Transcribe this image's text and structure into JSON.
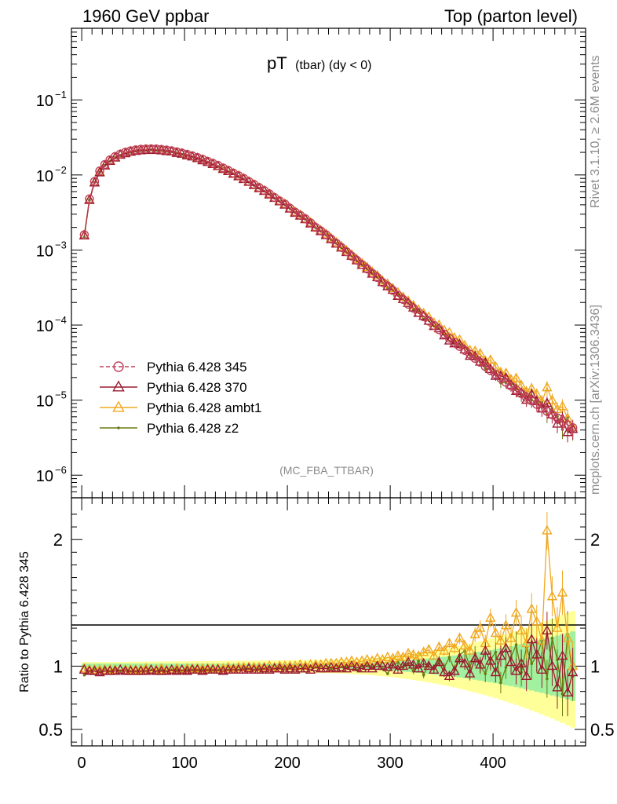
{
  "header": {
    "left": "1960 GeV ppbar",
    "right": "Top (parton level)"
  },
  "side_text": {
    "rivet": "Rivet 3.1.10, ≥ 2.6M events",
    "mcplots": "mcplots.cern.ch [arXiv:1306.3436]"
  },
  "plot_title": {
    "main": "pT",
    "sub": "(tbar) (dy < 0)"
  },
  "analysis_label": "(MC_FBA_TTBAR)",
  "ratio_ylabel": "Ratio to Pythia 6.428 345",
  "legend": [
    {
      "label": "Pythia 6.428 345",
      "color": "#c0405a",
      "marker": "circle",
      "dashed": true
    },
    {
      "label": "Pythia 6.428 370",
      "color": "#9b1b30",
      "marker": "triangle",
      "dashed": false
    },
    {
      "label": "Pythia 6.428 ambt1",
      "color": "#f0a820",
      "marker": "triangle",
      "dashed": false
    },
    {
      "label": "Pythia 6.428 z2",
      "color": "#6b7a12",
      "marker": "dot",
      "dashed": false
    }
  ],
  "chart_data": [
    {
      "type": "line",
      "panel": "main",
      "log_y": true,
      "x_range": [
        -10,
        490
      ],
      "ylim": [
        5e-07,
        0.9
      ],
      "ytick_labels": [
        "10^-6",
        "10^-5",
        "10^-4",
        "10^-3",
        "10^-2",
        "10^-1"
      ],
      "x": [
        2.5,
        7.5,
        12.5,
        17.5,
        22.5,
        27.5,
        32.5,
        37.5,
        42.5,
        47.5,
        52.5,
        57.5,
        62.5,
        67.5,
        72.5,
        77.5,
        82.5,
        87.5,
        92.5,
        97.5,
        102.5,
        107.5,
        112.5,
        117.5,
        122.5,
        127.5,
        132.5,
        137.5,
        142.5,
        147.5,
        152.5,
        157.5,
        162.5,
        167.5,
        172.5,
        177.5,
        182.5,
        187.5,
        192.5,
        197.5,
        202.5,
        207.5,
        212.5,
        217.5,
        222.5,
        227.5,
        232.5,
        237.5,
        242.5,
        247.5,
        252.5,
        257.5,
        262.5,
        267.5,
        272.5,
        277.5,
        282.5,
        287.5,
        292.5,
        297.5,
        302.5,
        307.5,
        312.5,
        317.5,
        322.5,
        327.5,
        332.5,
        337.5,
        342.5,
        347.5,
        352.5,
        357.5,
        362.5,
        367.5,
        372.5,
        377.5,
        382.5,
        387.5,
        392.5,
        397.5,
        402.5,
        407.5,
        412.5,
        417.5,
        422.5,
        427.5,
        432.5,
        437.5,
        442.5,
        447.5,
        452.5,
        457.5,
        462.5,
        467.5,
        472.5,
        477.5
      ],
      "series": [
        {
          "name": "Pythia 6.428 345",
          "values": [
            0.0016,
            0.0048,
            0.0082,
            0.0113,
            0.0138,
            0.0159,
            0.0176,
            0.019,
            0.0201,
            0.021,
            0.0216,
            0.022,
            0.0222,
            0.0223,
            0.0222,
            0.0219,
            0.0215,
            0.021,
            0.0203,
            0.0196,
            0.0188,
            0.018,
            0.0171,
            0.0162,
            0.0152,
            0.0143,
            0.0134,
            0.0124,
            0.0115,
            0.0106,
            0.0098,
            0.009,
            0.0082,
            0.0075,
            0.0068,
            0.0062,
            0.0056,
            0.005,
            0.0045,
            0.0041,
            0.0036,
            0.0032,
            0.0029,
            0.0026,
            0.0023,
            0.002,
            0.0018,
            0.0016,
            0.0014,
            0.00123,
            0.00108,
            0.00095,
            0.00083,
            0.00073,
            0.00064,
            0.00056,
            0.00049,
            0.00043,
            0.00037,
            0.00033,
            0.00029,
            0.00025,
            0.00022,
            0.00019,
            0.000168,
            0.000147,
            0.000129,
            0.000113,
            9.9e-05,
            8.7e-05,
            7.6e-05,
            6.7e-05,
            5.9e-05,
            5.2e-05,
            4.6e-05,
            4.1e-05,
            3.6e-05,
            3.2e-05,
            2.8e-05,
            2.48e-05,
            2.2e-05,
            1.95e-05,
            1.73e-05,
            1.54e-05,
            1.37e-05,
            1.22e-05,
            1.09e-05,
            9.8e-06,
            8.8e-06,
            7.9e-06,
            7.1e-06,
            6.4e-06,
            5.8e-06,
            5.2e-06,
            4.7e-06,
            4.3e-06
          ]
        },
        {
          "name": "Pythia 6.428 370",
          "ratio": [
            0.97,
            0.96,
            0.96,
            0.95,
            0.96,
            0.96,
            0.96,
            0.97,
            0.96,
            0.96,
            0.96,
            0.96,
            0.96,
            0.97,
            0.96,
            0.96,
            0.96,
            0.97,
            0.96,
            0.97,
            0.96,
            0.97,
            0.97,
            0.96,
            0.97,
            0.97,
            0.97,
            0.96,
            0.97,
            0.97,
            0.97,
            0.97,
            0.98,
            0.97,
            0.97,
            0.98,
            0.97,
            0.98,
            0.98,
            0.97,
            0.98,
            0.97,
            0.98,
            0.98,
            0.97,
            0.99,
            0.98,
            0.98,
            0.99,
            0.98,
            0.99,
            0.98,
            1.0,
            0.99,
            0.98,
            1.0,
            0.98,
            1.0,
            1.0,
            0.99,
            1.01,
            0.97,
            1.0,
            1.03,
            1.01,
            0.98,
            1.02,
            1.0,
            0.97,
            1.03,
            0.95,
            0.92,
            0.96,
            1.06,
            1.02,
            0.94,
            1.06,
            1.01,
            1.12,
            1.04,
            0.95,
            1.08,
            1.14,
            1.03,
            0.96,
            1.02,
            0.92,
            1.21,
            1.09,
            0.97,
            1.28,
            1.0,
            0.83,
            1.08,
            0.79,
            0.95
          ]
        },
        {
          "name": "Pythia 6.428 ambt1",
          "ratio": [
            0.98,
            0.97,
            0.97,
            0.97,
            0.97,
            0.97,
            0.97,
            0.97,
            0.97,
            0.97,
            0.97,
            0.97,
            0.98,
            0.97,
            0.97,
            0.98,
            0.97,
            0.97,
            0.98,
            0.97,
            0.98,
            0.98,
            0.98,
            0.98,
            0.98,
            0.98,
            0.98,
            0.98,
            0.99,
            0.98,
            0.99,
            0.99,
            0.99,
            0.99,
            0.99,
            0.99,
            1.0,
            0.99,
            1.0,
            1.0,
            1.0,
            1.0,
            1.01,
            1.0,
            1.01,
            1.01,
            1.01,
            1.02,
            1.02,
            1.02,
            1.03,
            1.03,
            1.04,
            1.03,
            1.04,
            1.05,
            1.04,
            1.06,
            1.05,
            1.07,
            1.06,
            1.08,
            1.07,
            1.1,
            1.09,
            1.08,
            1.11,
            1.13,
            1.08,
            1.15,
            1.12,
            1.18,
            1.14,
            1.22,
            1.16,
            1.12,
            1.25,
            1.3,
            1.18,
            1.38,
            1.26,
            1.2,
            1.32,
            1.22,
            1.42,
            1.28,
            1.18,
            1.45,
            1.35,
            1.2,
            2.07,
            1.55,
            1.3,
            1.58,
            1.22,
            1.0
          ]
        },
        {
          "name": "Pythia 6.428 z2",
          "ratio": [
            0.93,
            0.96,
            0.97,
            0.96,
            0.97,
            0.96,
            0.97,
            0.96,
            0.97,
            0.96,
            0.96,
            0.96,
            0.96,
            0.97,
            0.96,
            0.97,
            0.96,
            0.97,
            0.97,
            0.96,
            0.97,
            0.97,
            0.97,
            0.97,
            0.97,
            0.97,
            0.97,
            0.98,
            0.97,
            0.98,
            0.97,
            0.98,
            0.98,
            0.97,
            0.98,
            0.98,
            0.99,
            0.98,
            0.99,
            0.98,
            0.99,
            0.99,
            0.98,
            0.99,
            1.0,
            0.99,
            0.99,
            1.0,
            0.98,
            1.0,
            1.0,
            0.99,
            1.01,
            0.97,
            1.0,
            1.01,
            0.99,
            1.02,
            0.98,
            0.94,
            1.01,
            1.03,
            0.99,
            1.02,
            0.96,
            1.04,
            0.93,
            1.02,
            0.98,
            1.05,
            0.99,
            1.07,
            0.97,
            1.09,
            1.12,
            0.99,
            1.1,
            1.0,
            0.94,
            1.05,
            1.11,
            0.87,
            0.99,
            1.07,
            1.17,
            0.95,
            1.15,
            1.02,
            1.08,
            1.2,
            0.9,
            1.22,
            1.05,
            0.78,
            1.25,
            0.92
          ]
        }
      ]
    },
    {
      "type": "line",
      "panel": "ratio",
      "ylabel": "Ratio to Pythia 6.428 345",
      "ylim": [
        0.37,
        2.33
      ],
      "ytick_labels": [
        "0.5",
        "1",
        "2"
      ],
      "xtick_labels": [
        "0",
        "100",
        "200",
        "300",
        "400"
      ],
      "band_colors": {
        "stat": "#a0f0a0",
        "total": "#ffff99"
      }
    }
  ]
}
